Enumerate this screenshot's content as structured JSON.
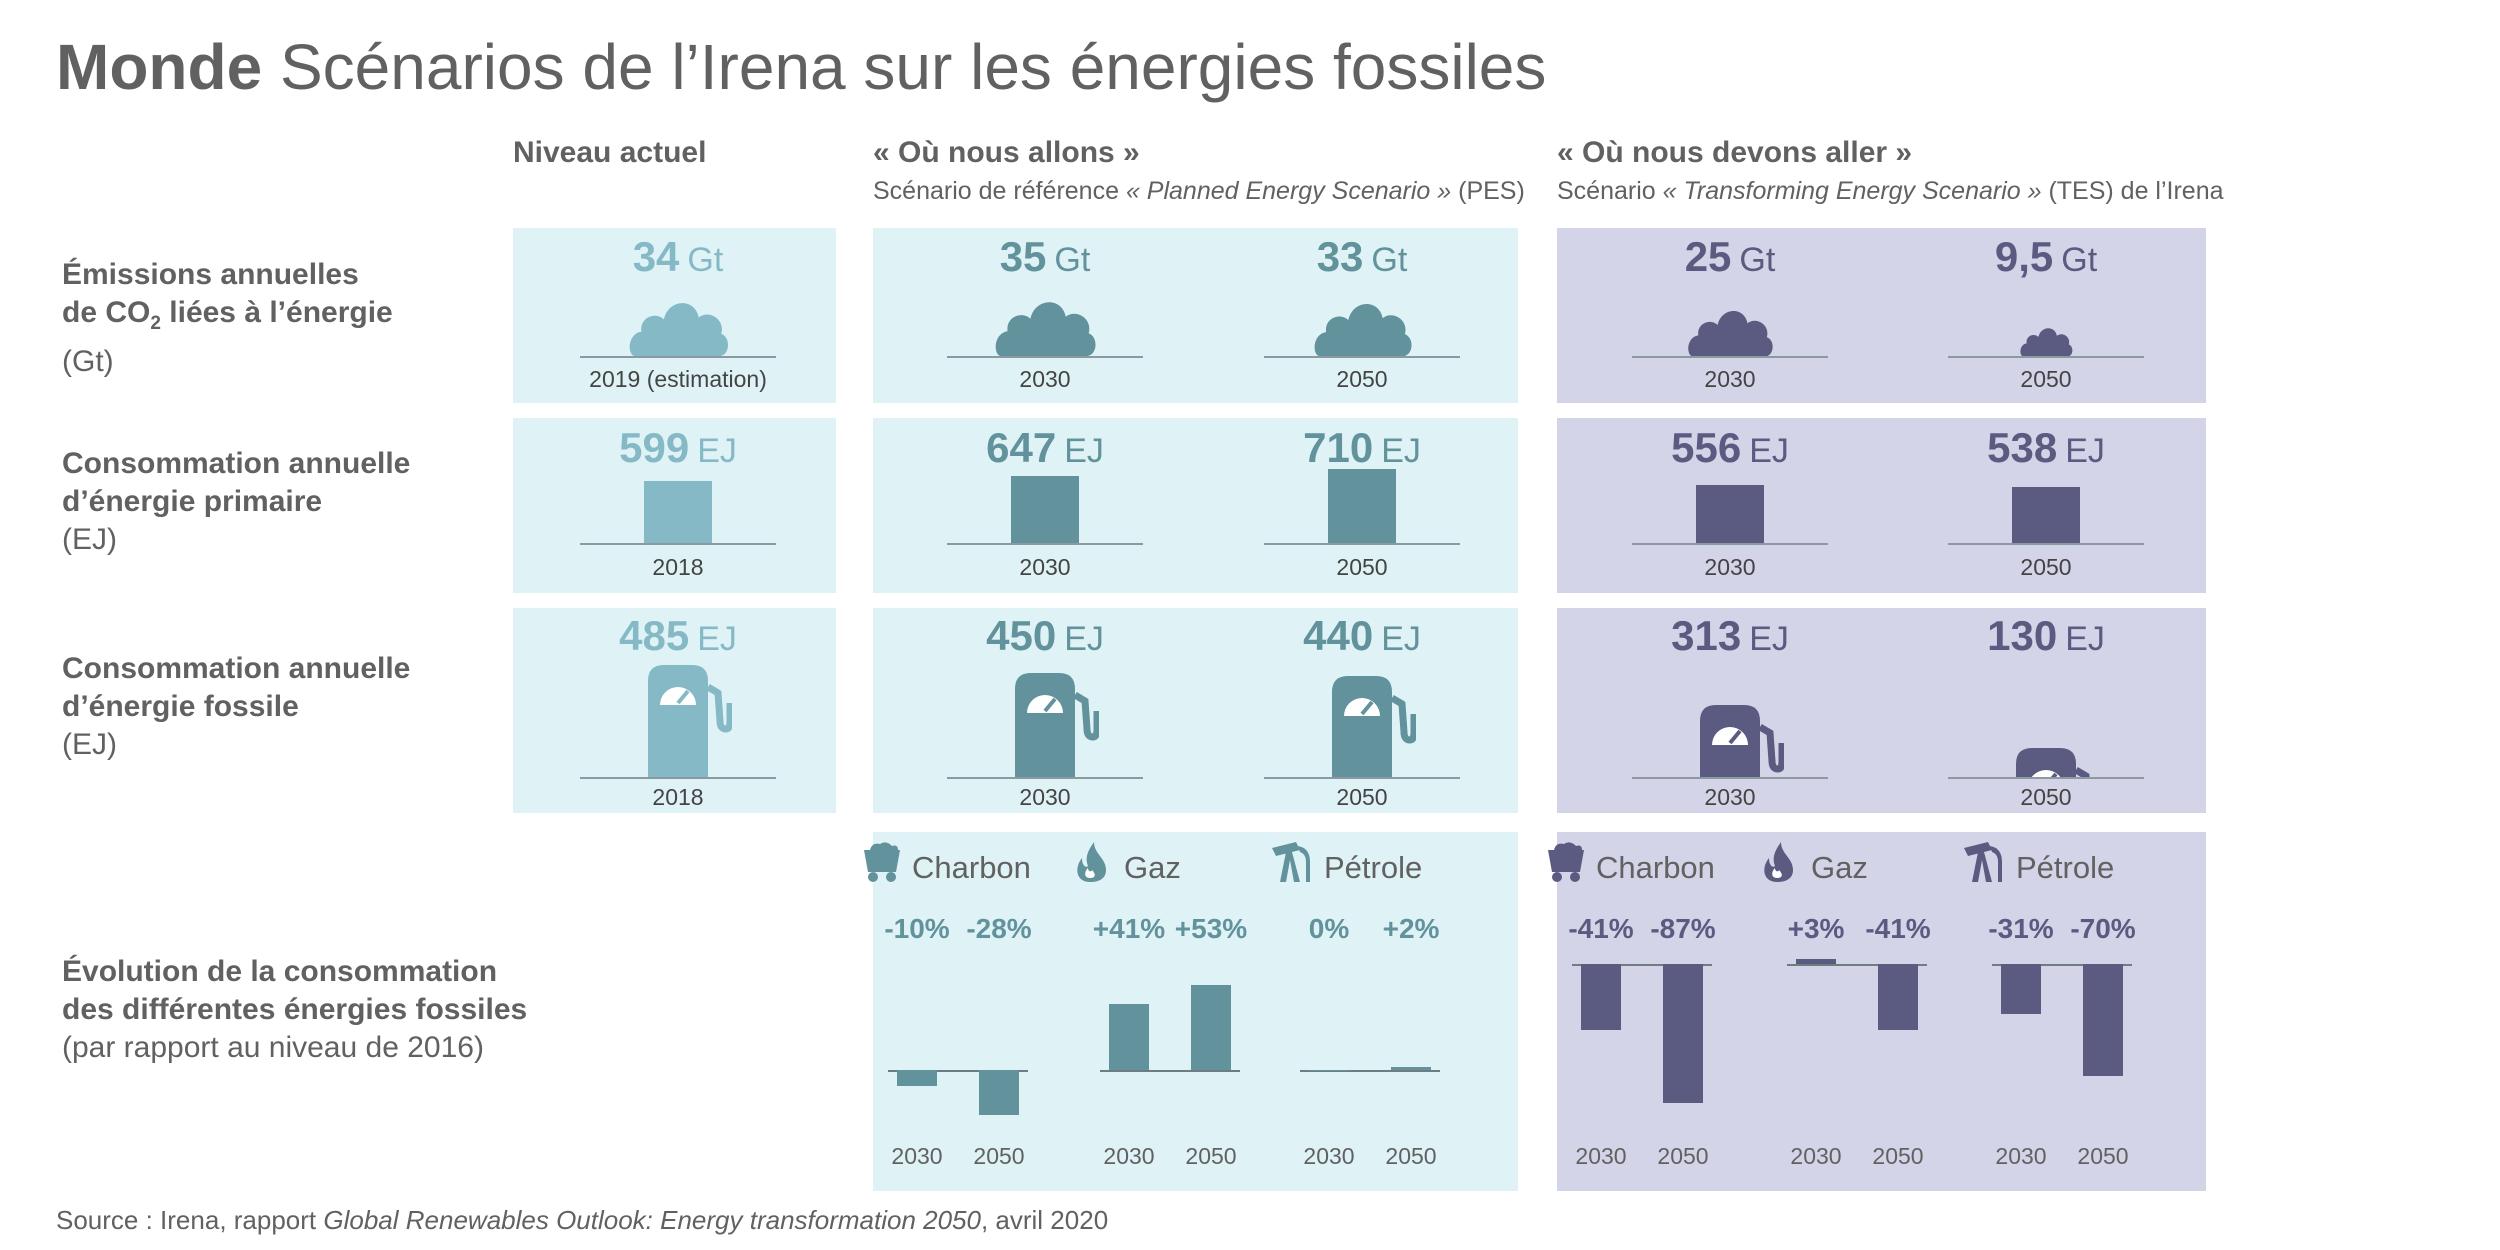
{
  "title": {
    "bold": "Monde",
    "rest": "Scénarios de l’Irena sur les énergies fossiles"
  },
  "columns": {
    "current": {
      "heading": "Niveau actuel"
    },
    "planned": {
      "heading": "« Où nous allons »",
      "sub_prefix": "Scénario de référence ",
      "sub_italic": "« Planned Energy Scenario »",
      "sub_suffix": " (PES)"
    },
    "transforming": {
      "heading": "« Où nous devons aller »",
      "sub_prefix": "Scénario ",
      "sub_italic": "« Transforming Energy Scenario »",
      "sub_suffix": " (TES) de l’Irena"
    }
  },
  "rows": {
    "co2": {
      "line1": "Émissions annuelles",
      "line2a": "de CO",
      "line2sub": "2",
      "line2b": " liées à l’énergie",
      "unit": "(Gt)"
    },
    "primary": {
      "line1": "Consommation annuelle",
      "line2": "d’énergie primaire",
      "unit": "(EJ)"
    },
    "fossil": {
      "line1": "Consommation annuelle",
      "line2": "d’énergie fossile",
      "unit": "(EJ)"
    },
    "evolution": {
      "line1": "Évolution de la consommation",
      "line2": "des différentes énergies fossiles",
      "note": "(par rapport au niveau de 2016)"
    }
  },
  "colors": {
    "current": "#86b9c6",
    "planned": "#62929b",
    "transforming": "#5b5a80",
    "panel_cyan": "#dff3f7",
    "panel_lavender": "#d4d4e8"
  },
  "chart_data": {
    "type": "bar",
    "emissions_gt": [
      {
        "scenario": "current",
        "label": "2019 (estimation)",
        "value_text": "34",
        "unit": "Gt",
        "value": 34
      },
      {
        "scenario": "planned",
        "label": "2030",
        "value_text": "35",
        "unit": "Gt",
        "value": 35
      },
      {
        "scenario": "planned",
        "label": "2050",
        "value_text": "33",
        "unit": "Gt",
        "value": 33
      },
      {
        "scenario": "transforming",
        "label": "2030",
        "value_text": "25",
        "unit": "Gt",
        "value": 25
      },
      {
        "scenario": "transforming",
        "label": "2050",
        "value_text": "9,5",
        "unit": "Gt",
        "value": 9.5
      }
    ],
    "primary_ej": [
      {
        "scenario": "current",
        "label": "2018",
        "value_text": "599",
        "unit": "EJ",
        "value": 599
      },
      {
        "scenario": "planned",
        "label": "2030",
        "value_text": "647",
        "unit": "EJ",
        "value": 647
      },
      {
        "scenario": "planned",
        "label": "2050",
        "value_text": "710",
        "unit": "EJ",
        "value": 710
      },
      {
        "scenario": "transforming",
        "label": "2030",
        "value_text": "556",
        "unit": "EJ",
        "value": 556
      },
      {
        "scenario": "transforming",
        "label": "2050",
        "value_text": "538",
        "unit": "EJ",
        "value": 538
      }
    ],
    "fossil_ej": [
      {
        "scenario": "current",
        "label": "2018",
        "value_text": "485",
        "unit": "EJ",
        "value": 485
      },
      {
        "scenario": "planned",
        "label": "2030",
        "value_text": "450",
        "unit": "EJ",
        "value": 450
      },
      {
        "scenario": "planned",
        "label": "2050",
        "value_text": "440",
        "unit": "EJ",
        "value": 440
      },
      {
        "scenario": "transforming",
        "label": "2030",
        "value_text": "313",
        "unit": "EJ",
        "value": 313
      },
      {
        "scenario": "transforming",
        "label": "2050",
        "value_text": "130",
        "unit": "EJ",
        "value": 130
      }
    ],
    "fossil_change_pct": {
      "categories": [
        "2030",
        "2050"
      ],
      "planned": [
        {
          "fuel": "Charbon",
          "icon": "coal-cart-icon",
          "labels": [
            "-10%",
            "-28%"
          ],
          "values": [
            -10,
            -28
          ]
        },
        {
          "fuel": "Gaz",
          "icon": "flame-icon",
          "labels": [
            "+41%",
            "+53%"
          ],
          "values": [
            41,
            53
          ]
        },
        {
          "fuel": "Pétrole",
          "icon": "oil-pump-icon",
          "labels": [
            "0%",
            "+2%"
          ],
          "values": [
            0,
            2
          ]
        }
      ],
      "transforming": [
        {
          "fuel": "Charbon",
          "icon": "coal-cart-icon",
          "labels": [
            "-41%",
            "-87%"
          ],
          "values": [
            -41,
            -87
          ]
        },
        {
          "fuel": "Gaz",
          "icon": "flame-icon",
          "labels": [
            "+3%",
            "-41%"
          ],
          "values": [
            3,
            -41
          ]
        },
        {
          "fuel": "Pétrole",
          "icon": "oil-pump-icon",
          "labels": [
            "-31%",
            "-70%"
          ],
          "values": [
            -31,
            -70
          ]
        }
      ]
    }
  },
  "source": {
    "prefix": "Source : Irena, rapport ",
    "italic": "Global Renewables Outlook: Energy transformation 2050",
    "suffix": ", avril 2020"
  }
}
